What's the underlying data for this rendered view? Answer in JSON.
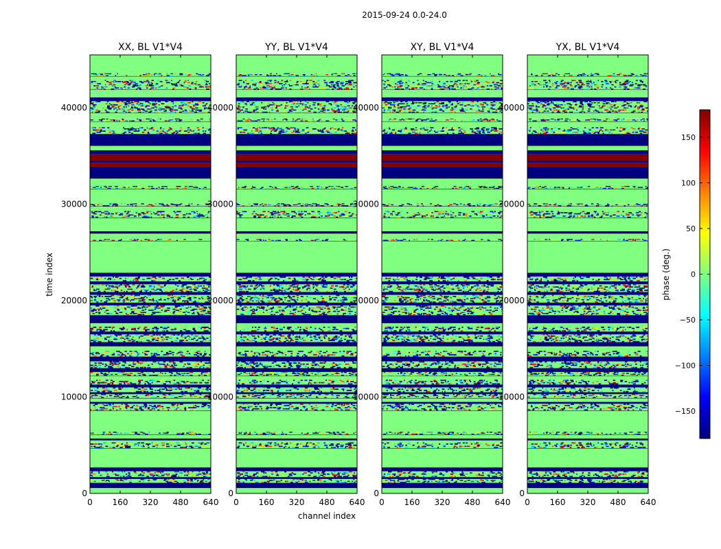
{
  "chart_data": {
    "type": "heatmap",
    "title": "2015-09-24 0.0-24.0",
    "xlabel": "channel index",
    "ylabel": "time index",
    "xlim": [
      0,
      640
    ],
    "ylim": [
      0,
      45500
    ],
    "xticks": [
      0,
      160,
      320,
      480,
      640
    ],
    "yticks": [
      0,
      10000,
      20000,
      30000,
      40000
    ],
    "panels": [
      {
        "name": "XX",
        "title": "XX, BL V1*V4"
      },
      {
        "name": "YY",
        "title": "YY, BL V1*V4"
      },
      {
        "name": "XY",
        "title": "XY, BL V1*V4"
      },
      {
        "name": "YX",
        "title": "YX, BL V1*V4"
      }
    ],
    "colorbar": {
      "label": "phase (deg.)",
      "range": [
        -180,
        180
      ],
      "ticks": [
        -150,
        -100,
        -50,
        0,
        50,
        100,
        150
      ],
      "colormap": "jet"
    },
    "bands": [
      {
        "start": 0,
        "end": 600,
        "kind": "flat"
      },
      {
        "start": 600,
        "end": 1100,
        "kind": "low"
      },
      {
        "start": 1100,
        "end": 1500,
        "kind": "noisy"
      },
      {
        "start": 1500,
        "end": 1700,
        "kind": "low"
      },
      {
        "start": 1700,
        "end": 2300,
        "kind": "noisy"
      },
      {
        "start": 2300,
        "end": 2700,
        "kind": "low"
      },
      {
        "start": 2700,
        "end": 4700,
        "kind": "flat"
      },
      {
        "start": 4700,
        "end": 5300,
        "kind": "noisy"
      },
      {
        "start": 5300,
        "end": 5500,
        "kind": "flat"
      },
      {
        "start": 5500,
        "end": 5700,
        "kind": "low"
      },
      {
        "start": 5700,
        "end": 6100,
        "kind": "flat"
      },
      {
        "start": 6100,
        "end": 6400,
        "kind": "noisy"
      },
      {
        "start": 6400,
        "end": 8600,
        "kind": "flat"
      },
      {
        "start": 8600,
        "end": 9300,
        "kind": "noisy"
      },
      {
        "start": 9300,
        "end": 9500,
        "kind": "low"
      },
      {
        "start": 9500,
        "end": 9900,
        "kind": "flat"
      },
      {
        "start": 9900,
        "end": 10300,
        "kind": "noisy"
      },
      {
        "start": 10300,
        "end": 10500,
        "kind": "low"
      },
      {
        "start": 10500,
        "end": 11000,
        "kind": "noisy"
      },
      {
        "start": 11000,
        "end": 11300,
        "kind": "low"
      },
      {
        "start": 11300,
        "end": 11800,
        "kind": "noisy"
      },
      {
        "start": 11800,
        "end": 12200,
        "kind": "flat"
      },
      {
        "start": 12200,
        "end": 12600,
        "kind": "noisy"
      },
      {
        "start": 12600,
        "end": 13000,
        "kind": "low"
      },
      {
        "start": 13000,
        "end": 13700,
        "kind": "noisy"
      },
      {
        "start": 13700,
        "end": 14200,
        "kind": "low"
      },
      {
        "start": 14200,
        "end": 14800,
        "kind": "noisy"
      },
      {
        "start": 14800,
        "end": 15300,
        "kind": "flat"
      },
      {
        "start": 15300,
        "end": 15700,
        "kind": "low"
      },
      {
        "start": 15700,
        "end": 16500,
        "kind": "noisy"
      },
      {
        "start": 16500,
        "end": 16800,
        "kind": "low"
      },
      {
        "start": 16800,
        "end": 17300,
        "kind": "noisy"
      },
      {
        "start": 17300,
        "end": 17700,
        "kind": "flat"
      },
      {
        "start": 17700,
        "end": 18500,
        "kind": "low"
      },
      {
        "start": 18500,
        "end": 19500,
        "kind": "noisy"
      },
      {
        "start": 19500,
        "end": 19800,
        "kind": "low"
      },
      {
        "start": 19800,
        "end": 20600,
        "kind": "noisy"
      },
      {
        "start": 20600,
        "end": 20900,
        "kind": "low"
      },
      {
        "start": 20900,
        "end": 21700,
        "kind": "noisy"
      },
      {
        "start": 21700,
        "end": 22000,
        "kind": "low"
      },
      {
        "start": 22000,
        "end": 22500,
        "kind": "noisy"
      },
      {
        "start": 22500,
        "end": 22900,
        "kind": "low"
      },
      {
        "start": 22900,
        "end": 26200,
        "kind": "flat"
      },
      {
        "start": 26200,
        "end": 26400,
        "kind": "noisy"
      },
      {
        "start": 26400,
        "end": 27000,
        "kind": "flat"
      },
      {
        "start": 27000,
        "end": 27200,
        "kind": "low"
      },
      {
        "start": 27200,
        "end": 28600,
        "kind": "flat"
      },
      {
        "start": 28600,
        "end": 29300,
        "kind": "noisy"
      },
      {
        "start": 29300,
        "end": 29800,
        "kind": "flat"
      },
      {
        "start": 29800,
        "end": 30100,
        "kind": "noisy"
      },
      {
        "start": 30100,
        "end": 31600,
        "kind": "flat"
      },
      {
        "start": 31600,
        "end": 31900,
        "kind": "noisy"
      },
      {
        "start": 31900,
        "end": 32700,
        "kind": "flat"
      },
      {
        "start": 32700,
        "end": 33900,
        "kind": "low"
      },
      {
        "start": 33900,
        "end": 34300,
        "kind": "high"
      },
      {
        "start": 34300,
        "end": 34500,
        "kind": "low"
      },
      {
        "start": 34500,
        "end": 35200,
        "kind": "high"
      },
      {
        "start": 35200,
        "end": 35600,
        "kind": "low"
      },
      {
        "start": 35600,
        "end": 36100,
        "kind": "flat"
      },
      {
        "start": 36100,
        "end": 37300,
        "kind": "low"
      },
      {
        "start": 37300,
        "end": 38000,
        "kind": "noisy"
      },
      {
        "start": 38000,
        "end": 38600,
        "kind": "flat"
      },
      {
        "start": 38600,
        "end": 38900,
        "kind": "noisy"
      },
      {
        "start": 38900,
        "end": 39500,
        "kind": "flat"
      },
      {
        "start": 39500,
        "end": 40700,
        "kind": "noisy"
      },
      {
        "start": 40700,
        "end": 41100,
        "kind": "low"
      },
      {
        "start": 41100,
        "end": 41900,
        "kind": "flat"
      },
      {
        "start": 41900,
        "end": 42900,
        "kind": "noisy"
      },
      {
        "start": 42900,
        "end": 43300,
        "kind": "flat"
      },
      {
        "start": 43300,
        "end": 43600,
        "kind": "noisy"
      },
      {
        "start": 43600,
        "end": 45500,
        "kind": "flat"
      }
    ]
  }
}
